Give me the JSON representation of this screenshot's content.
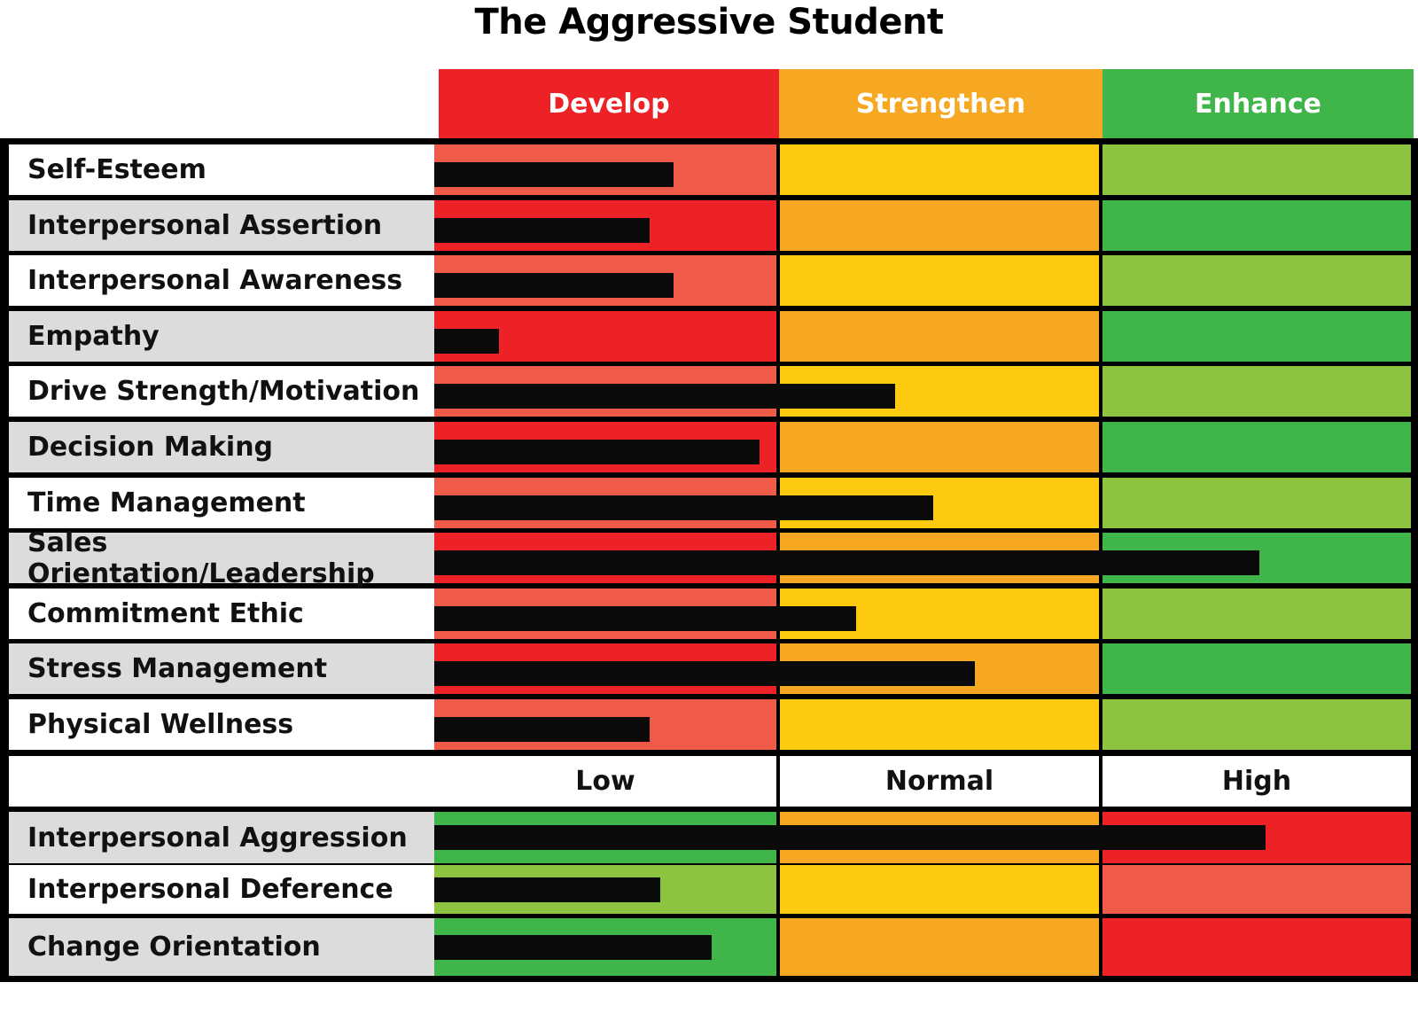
{
  "chart_data": {
    "type": "bar",
    "title": "The Aggressive Student",
    "zones": [
      {
        "name": "Develop",
        "color": "#ed2227"
      },
      {
        "name": "Strengthen",
        "color": "#f7a823"
      },
      {
        "name": "Enhance",
        "color": "#40b54a"
      }
    ],
    "xlim": [
      0,
      3
    ],
    "scale_labels": [
      "Low",
      "Normal",
      "High"
    ],
    "categories": [
      "Self-Esteem",
      "Interpersonal Assertion",
      "Interpersonal Awareness",
      "Empathy",
      "Drive Strength/Motivation",
      "Decision Making",
      "Time Management",
      "Sales Orientation/Leadership",
      "Commitment Ethic",
      "Stress Management",
      "Physical Wellness"
    ],
    "values": [
      0.7,
      0.63,
      0.7,
      0.19,
      1.36,
      0.95,
      1.48,
      2.51,
      1.24,
      1.61,
      0.63
    ],
    "secondary_categories": [
      "Interpersonal Aggression",
      "Interpersonal Deference",
      "Change Orientation"
    ],
    "secondary_values": [
      2.53,
      0.66,
      0.81
    ],
    "palette": {
      "light_red": "#f05a49",
      "red": "#ed2227",
      "yellow": "#fdca10",
      "orange": "#f7a823",
      "light_green": "#8cc43f",
      "green": "#40b54a"
    }
  }
}
